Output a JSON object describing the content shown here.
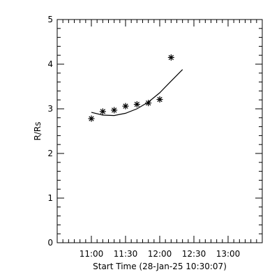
{
  "chart_data": {
    "type": "scatter",
    "xlabel": "Start Time (28-Jan-25 10:30:07)",
    "ylabel": "R/Rs",
    "xlim": [
      "10:30",
      "13:30"
    ],
    "ylim": [
      0,
      5
    ],
    "x_tick_labels": [
      "11:00",
      "11:30",
      "12:00",
      "12:30",
      "13:00"
    ],
    "y_tick_labels": [
      "0",
      "1",
      "2",
      "3",
      "4",
      "5"
    ],
    "grid": false,
    "series": [
      {
        "marker": "asterisk",
        "points": [
          {
            "x": "11:00",
            "y": 2.78
          },
          {
            "x": "11:10",
            "y": 2.94
          },
          {
            "x": "11:20",
            "y": 2.97
          },
          {
            "x": "11:30",
            "y": 3.06
          },
          {
            "x": "11:40",
            "y": 3.1
          },
          {
            "x": "11:50",
            "y": 3.13
          },
          {
            "x": "12:00",
            "y": 3.21
          },
          {
            "x": "12:10",
            "y": 4.15
          }
        ]
      },
      {
        "style": "solid-line",
        "points": [
          {
            "x": "11:00",
            "y": 2.92
          },
          {
            "x": "11:10",
            "y": 2.86
          },
          {
            "x": "11:20",
            "y": 2.85
          },
          {
            "x": "11:30",
            "y": 2.9
          },
          {
            "x": "11:40",
            "y": 3.0
          },
          {
            "x": "11:50",
            "y": 3.15
          },
          {
            "x": "12:00",
            "y": 3.36
          },
          {
            "x": "12:10",
            "y": 3.62
          },
          {
            "x": "12:20",
            "y": 3.88
          }
        ]
      }
    ]
  }
}
